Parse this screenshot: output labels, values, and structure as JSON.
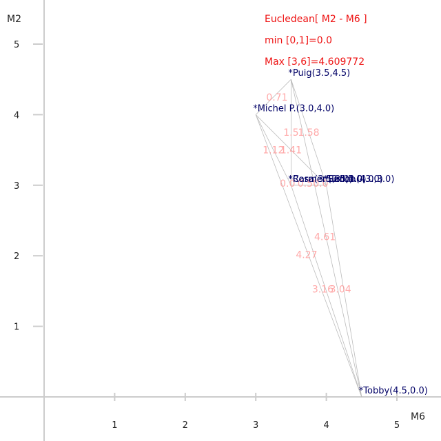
{
  "chart_data": {
    "type": "scatter",
    "xlabel": "M6",
    "ylabel": "M2",
    "xlim": [
      0,
      5.5
    ],
    "ylim": [
      0,
      5.5
    ],
    "x_ticks": [
      "1",
      "2",
      "3",
      "4",
      "5"
    ],
    "y_ticks": [
      "1",
      "2",
      "3",
      "4",
      "5"
    ],
    "grid": false,
    "info_lines": [
      "Eucledean[ M2 - M6 ]",
      "min [0,1]=0.0",
      "Max [3,6]=4.609772"
    ],
    "points": [
      {
        "label": "*Puig(3.5,4.5)",
        "x": 3.5,
        "y": 4.5
      },
      {
        "label": "*Michel P.(3.0,4.0)",
        "x": 3.0,
        "y": 4.0
      },
      {
        "label": "*Rosa(3.5,3.0)",
        "x": 3.5,
        "y": 3.0
      },
      {
        "label": "*Carmen(3.5,3.0)",
        "x": 3.5,
        "y": 3.0
      },
      {
        "label": "*Sanda(4.0,3.0)",
        "x": 4.0,
        "y": 3.0
      },
      {
        "label": "*Bell(4.0,3.0)",
        "x": 4.0,
        "y": 3.0
      },
      {
        "label": "*Tobby(4.5,0.0)",
        "x": 4.5,
        "y": 0.0
      }
    ],
    "distances": [
      {
        "label": "0.71",
        "x": 3.3,
        "y": 4.2
      },
      {
        "label": "1.5",
        "x": 3.5,
        "y": 3.7
      },
      {
        "label": "1.58",
        "x": 3.75,
        "y": 3.7
      },
      {
        "label": "1.12",
        "x": 3.25,
        "y": 3.45
      },
      {
        "label": "1.41",
        "x": 3.5,
        "y": 3.45
      },
      {
        "label": "0.0",
        "x": 3.45,
        "y": 2.98
      },
      {
        "label": "0.5",
        "x": 3.7,
        "y": 2.98
      },
      {
        "label": "0.0",
        "x": 3.92,
        "y": 2.98
      },
      {
        "label": "4.61",
        "x": 3.98,
        "y": 2.22
      },
      {
        "label": "4.27",
        "x": 3.72,
        "y": 1.97
      },
      {
        "label": "3.16",
        "x": 3.95,
        "y": 1.48
      },
      {
        "label": "3.04",
        "x": 4.2,
        "y": 1.48
      }
    ],
    "edges": [
      [
        0,
        1
      ],
      [
        0,
        2
      ],
      [
        0,
        4
      ],
      [
        0,
        6
      ],
      [
        1,
        2
      ],
      [
        1,
        4
      ],
      [
        1,
        6
      ],
      [
        2,
        4
      ],
      [
        2,
        6
      ],
      [
        4,
        6
      ]
    ]
  },
  "colors": {
    "axis": "#cccccc",
    "info": "#ee1111",
    "point_label": "#000066",
    "distance": "#ff9999",
    "edge": "#bbbbbb"
  }
}
